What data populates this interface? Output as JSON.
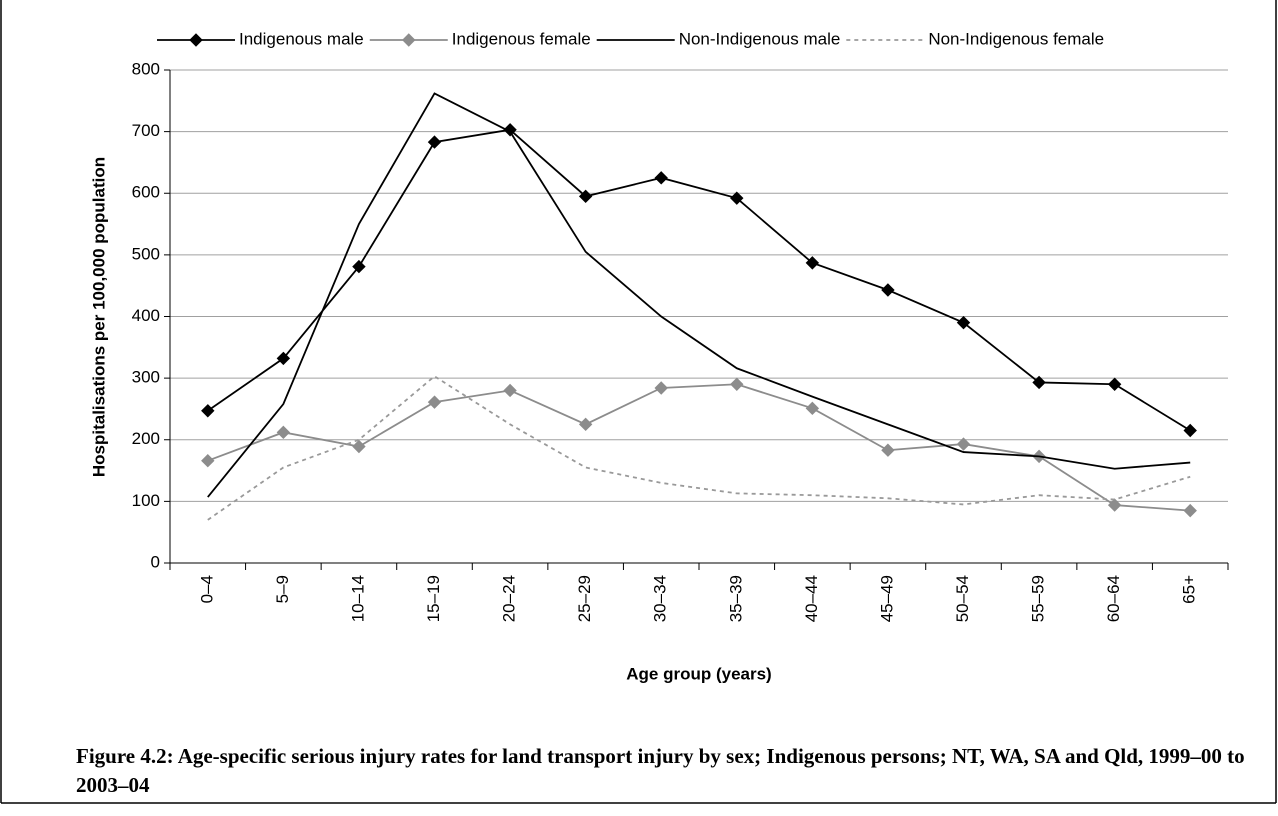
{
  "chart_data": {
    "type": "line",
    "title": "Figure 4.2: Age-specific serious injury rates for land transport injury by sex; Indigenous persons; NT, WA, SA and Qld, 1999–00 to 2003–04",
    "x_label": "Age group (years)",
    "y_label": "Hospitalisations per 100,000 population",
    "categories": [
      "0–4",
      "5–9",
      "10–14",
      "15–19",
      "20–24",
      "25–29",
      "30–34",
      "35–39",
      "40–44",
      "45–49",
      "50–54",
      "55–59",
      "60–64",
      "65+"
    ],
    "series": [
      {
        "name": "Indigenous male",
        "color": "#000000",
        "marker": "diamond",
        "line_style": "solid",
        "values": [
          247,
          332,
          481,
          683,
          703,
          595,
          625,
          592,
          487,
          443,
          390,
          293,
          290,
          215
        ]
      },
      {
        "name": "Indigenous female",
        "color": "#8c8c8c",
        "marker": "diamond",
        "line_style": "solid",
        "values": [
          166,
          212,
          189,
          261,
          280,
          225,
          284,
          290,
          251,
          183,
          193,
          173,
          94,
          85
        ]
      },
      {
        "name": "Non-Indigenous male",
        "color": "#000000",
        "marker": "none",
        "line_style": "solid",
        "values": [
          107,
          258,
          550,
          762,
          700,
          505,
          400,
          316,
          270,
          225,
          180,
          173,
          153,
          163
        ]
      },
      {
        "name": "Non-Indigenous female",
        "color": "#999999",
        "marker": "none",
        "line_style": "dashed",
        "values": [
          70,
          155,
          200,
          303,
          225,
          155,
          130,
          113,
          110,
          105,
          95,
          110,
          103,
          140
        ]
      }
    ],
    "ylim": [
      0,
      800
    ],
    "yticks": [
      0,
      100,
      200,
      300,
      400,
      500,
      600,
      700,
      800
    ],
    "grid": true,
    "legend": "top"
  }
}
